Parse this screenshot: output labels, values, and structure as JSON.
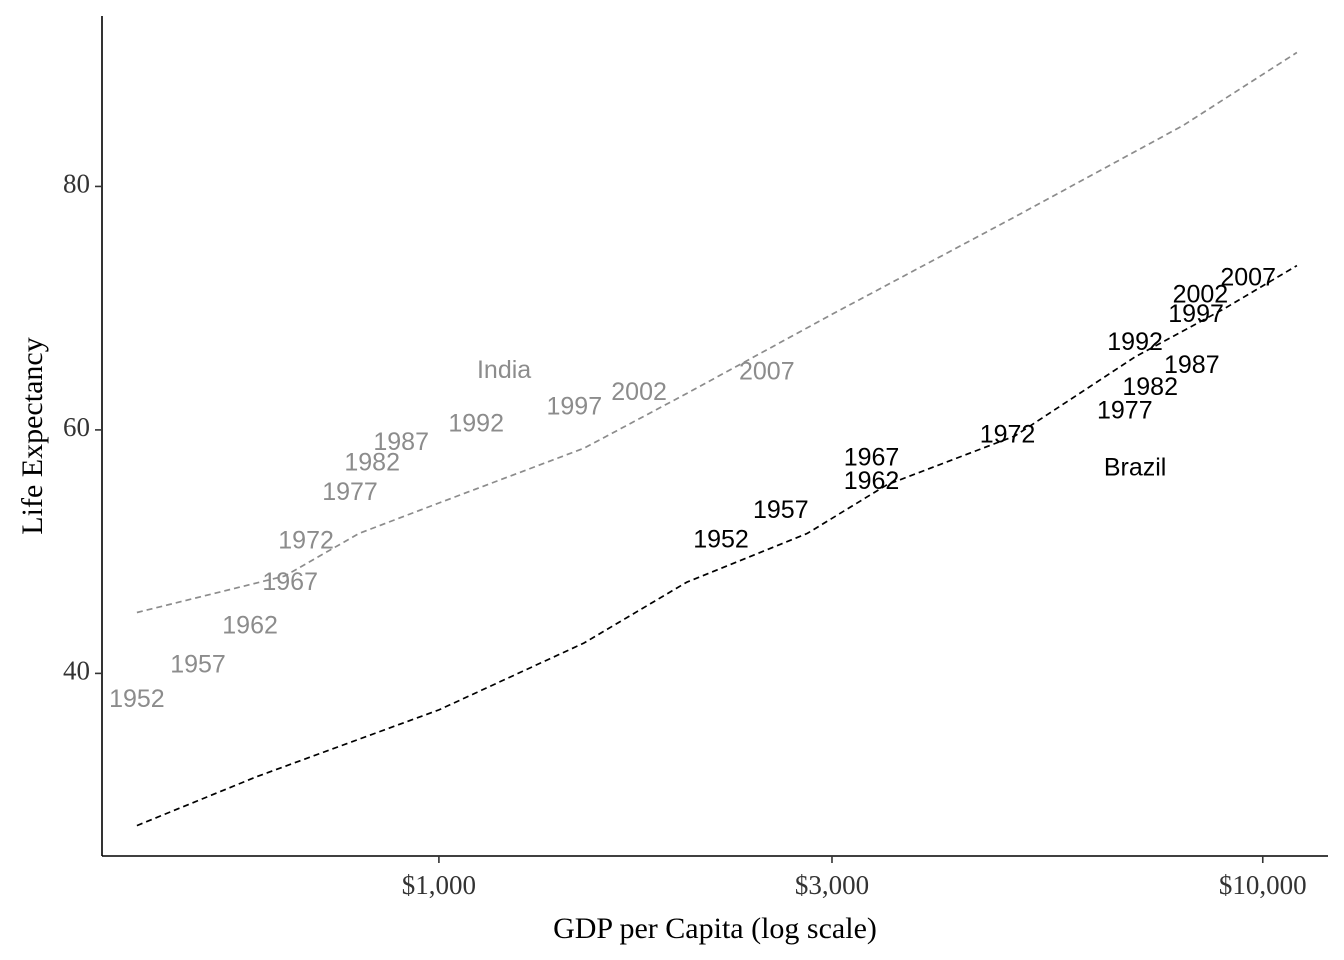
{
  "chart_data": {
    "type": "scatter",
    "title": "",
    "xlabel": "GDP per Capita (log scale)",
    "ylabel": "Life Expectancy",
    "x_scale": "log",
    "xlim": [
      390,
      12000
    ],
    "ylim": [
      25,
      94
    ],
    "x_ticks": [
      {
        "value": 1000,
        "label": "$1,000"
      },
      {
        "value": 3000,
        "label": "$3,000"
      },
      {
        "value": 10000,
        "label": "$10,000"
      }
    ],
    "y_ticks": [
      {
        "value": 40,
        "label": "40"
      },
      {
        "value": 60,
        "label": "60"
      },
      {
        "value": 80,
        "label": "80"
      }
    ],
    "grid": false,
    "legend": "none",
    "series": [
      {
        "name": "India",
        "color": "#8c8c8c",
        "label_at": {
          "x": 1200,
          "y": 64.8
        },
        "points": [
          {
            "label": "1952",
            "x": 430,
            "y": 37.8
          },
          {
            "label": "1957",
            "x": 510,
            "y": 40.6
          },
          {
            "label": "1962",
            "x": 590,
            "y": 43.8
          },
          {
            "label": "1967",
            "x": 660,
            "y": 47.4
          },
          {
            "label": "1972",
            "x": 690,
            "y": 50.8
          },
          {
            "label": "1977",
            "x": 780,
            "y": 54.8
          },
          {
            "label": "1982",
            "x": 830,
            "y": 57.2
          },
          {
            "label": "1987",
            "x": 900,
            "y": 58.9
          },
          {
            "label": "1992",
            "x": 1110,
            "y": 60.4
          },
          {
            "label": "1997",
            "x": 1460,
            "y": 61.8
          },
          {
            "label": "2002",
            "x": 1750,
            "y": 63.0
          },
          {
            "label": "2007",
            "x": 2500,
            "y": 64.7
          }
        ],
        "trend": [
          [
            430,
            45.0
          ],
          [
            650,
            48.0
          ],
          [
            800,
            51.5
          ],
          [
            1000,
            54.0
          ],
          [
            1500,
            58.5
          ],
          [
            2000,
            63.0
          ],
          [
            3000,
            69.5
          ],
          [
            5000,
            77.5
          ],
          [
            8000,
            85.0
          ],
          [
            11000,
            91.0
          ]
        ]
      },
      {
        "name": "Brazil",
        "color": "#000000",
        "label_at": {
          "x": 7000,
          "y": 56.8
        },
        "points": [
          {
            "label": "1952",
            "x": 2200,
            "y": 50.9
          },
          {
            "label": "1957",
            "x": 2600,
            "y": 53.3
          },
          {
            "label": "1962",
            "x": 3350,
            "y": 55.7
          },
          {
            "label": "1967",
            "x": 3350,
            "y": 57.6
          },
          {
            "label": "1972",
            "x": 4900,
            "y": 59.5
          },
          {
            "label": "1977",
            "x": 6800,
            "y": 61.5
          },
          {
            "label": "1982",
            "x": 7300,
            "y": 63.4
          },
          {
            "label": "1987",
            "x": 8200,
            "y": 65.2
          },
          {
            "label": "1992",
            "x": 7000,
            "y": 67.1
          },
          {
            "label": "1997",
            "x": 8300,
            "y": 69.4
          },
          {
            "label": "2002",
            "x": 8400,
            "y": 71.0
          },
          {
            "label": "2007",
            "x": 9600,
            "y": 72.4
          }
        ],
        "trend": [
          [
            430,
            27.5
          ],
          [
            600,
            31.5
          ],
          [
            1000,
            37.0
          ],
          [
            1500,
            42.5
          ],
          [
            2000,
            47.5
          ],
          [
            2800,
            51.5
          ],
          [
            3500,
            55.5
          ],
          [
            5000,
            59.5
          ],
          [
            7000,
            66.0
          ],
          [
            9000,
            70.0
          ],
          [
            11000,
            73.5
          ]
        ]
      }
    ]
  }
}
